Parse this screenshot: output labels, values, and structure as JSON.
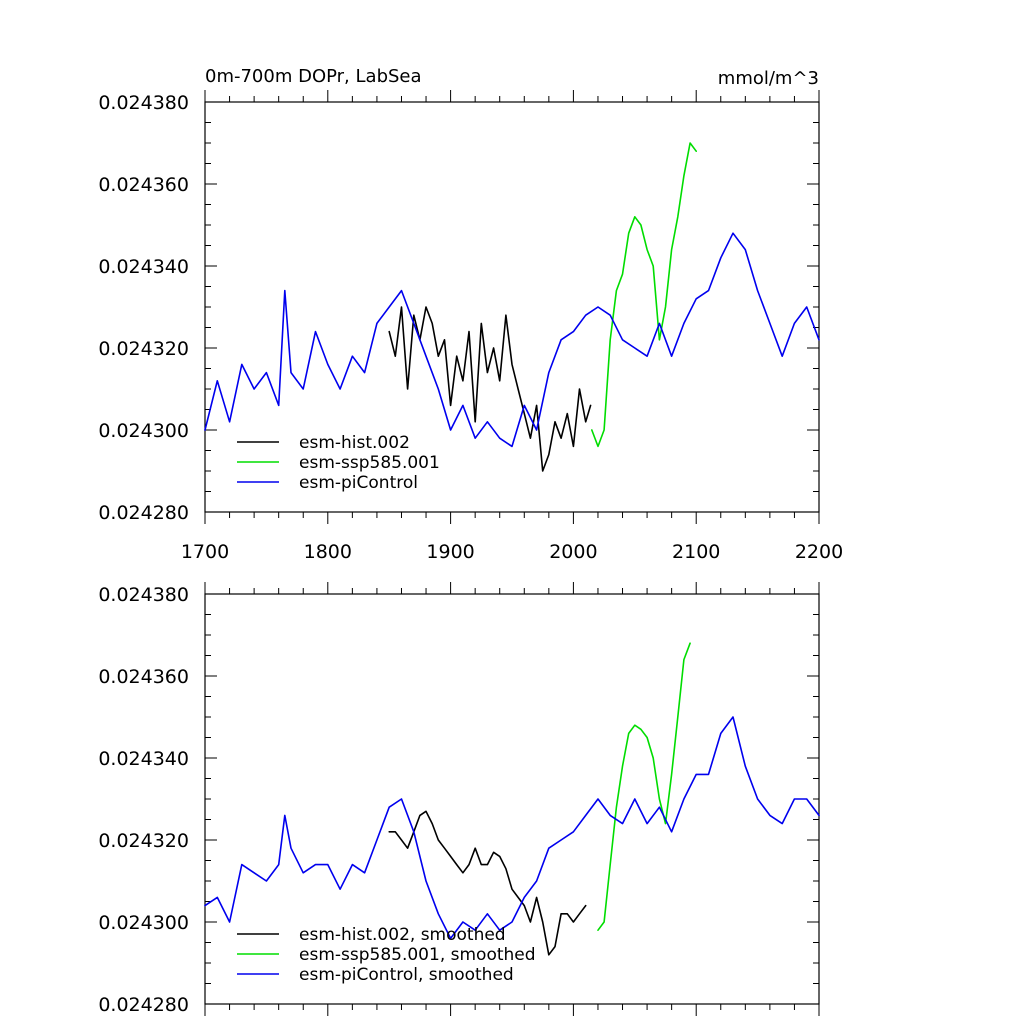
{
  "chart_data": [
    {
      "type": "line",
      "title": "0m-700m DOPr, LabSea",
      "units": "mmol/m^3",
      "xlim": [
        1700,
        2200
      ],
      "ylim": [
        0.02428,
        0.02438
      ],
      "xticks": [
        "1700",
        "1800",
        "1900",
        "2000",
        "2100",
        "2200"
      ],
      "yticks": [
        "0.024280",
        "0.024300",
        "0.024320",
        "0.024340",
        "0.024360",
        "0.024380"
      ],
      "legend": "bottom-left",
      "series": [
        {
          "name": "esm-hist.002",
          "color": "#000000",
          "x": [
            1850,
            1855,
            1860,
            1865,
            1870,
            1875,
            1880,
            1885,
            1890,
            1895,
            1900,
            1905,
            1910,
            1915,
            1920,
            1925,
            1930,
            1935,
            1940,
            1945,
            1950,
            1955,
            1960,
            1965,
            1970,
            1975,
            1980,
            1985,
            1990,
            1995,
            2000,
            2005,
            2010,
            2014
          ],
          "y": [
            0.024324,
            0.024318,
            0.02433,
            0.02431,
            0.024328,
            0.024322,
            0.02433,
            0.024326,
            0.024318,
            0.024322,
            0.024306,
            0.024318,
            0.024312,
            0.024324,
            0.024302,
            0.024326,
            0.024314,
            0.02432,
            0.024312,
            0.024328,
            0.024316,
            0.02431,
            0.024304,
            0.024298,
            0.024306,
            0.02429,
            0.024294,
            0.024302,
            0.024298,
            0.024304,
            0.024296,
            0.02431,
            0.024302,
            0.024306
          ]
        },
        {
          "name": "esm-ssp585.001",
          "color": "#00dd00",
          "x": [
            2015,
            2020,
            2025,
            2030,
            2035,
            2040,
            2045,
            2050,
            2055,
            2060,
            2065,
            2070,
            2075,
            2080,
            2085,
            2090,
            2095,
            2100
          ],
          "y": [
            0.0243,
            0.024296,
            0.0243,
            0.024322,
            0.024334,
            0.024338,
            0.024348,
            0.024352,
            0.02435,
            0.024344,
            0.02434,
            0.024322,
            0.02433,
            0.024344,
            0.024352,
            0.024362,
            0.02437,
            0.024368
          ]
        },
        {
          "name": "esm-piControl",
          "color": "#0000ee",
          "x": [
            1700,
            1710,
            1720,
            1730,
            1740,
            1750,
            1760,
            1765,
            1770,
            1780,
            1790,
            1800,
            1810,
            1820,
            1830,
            1840,
            1850,
            1860,
            1870,
            1880,
            1890,
            1900,
            1910,
            1920,
            1930,
            1940,
            1950,
            1960,
            1970,
            1980,
            1990,
            2000,
            2010,
            2020,
            2030,
            2040,
            2050,
            2060,
            2070,
            2080,
            2090,
            2100,
            2110,
            2120,
            2130,
            2140,
            2150,
            2160,
            2170,
            2180,
            2190,
            2200
          ],
          "y": [
            0.0243,
            0.024312,
            0.024302,
            0.024316,
            0.02431,
            0.024314,
            0.024306,
            0.024334,
            0.024314,
            0.02431,
            0.024324,
            0.024316,
            0.02431,
            0.024318,
            0.024314,
            0.024326,
            0.02433,
            0.024334,
            0.024326,
            0.024318,
            0.02431,
            0.0243,
            0.024306,
            0.024298,
            0.024302,
            0.024298,
            0.024296,
            0.024306,
            0.0243,
            0.024314,
            0.024322,
            0.024324,
            0.024328,
            0.02433,
            0.024328,
            0.024322,
            0.02432,
            0.024318,
            0.024326,
            0.024318,
            0.024326,
            0.024332,
            0.024334,
            0.024342,
            0.024348,
            0.024344,
            0.024334,
            0.024326,
            0.024318,
            0.024326,
            0.02433,
            0.024322
          ]
        }
      ]
    },
    {
      "type": "line",
      "xlim": [
        1700,
        2200
      ],
      "ylim": [
        0.02428,
        0.02438
      ],
      "yticks": [
        "0.024280",
        "0.024300",
        "0.024320",
        "0.024340",
        "0.024360",
        "0.024380"
      ],
      "legend": "bottom-left",
      "series": [
        {
          "name": "esm-hist.002, smoothed",
          "color": "#000000",
          "x": [
            1850,
            1855,
            1860,
            1865,
            1870,
            1875,
            1880,
            1885,
            1890,
            1895,
            1900,
            1905,
            1910,
            1915,
            1920,
            1925,
            1930,
            1935,
            1940,
            1945,
            1950,
            1955,
            1960,
            1965,
            1970,
            1975,
            1980,
            1985,
            1990,
            1995,
            2000,
            2005,
            2010
          ],
          "y": [
            0.024322,
            0.024322,
            0.02432,
            0.024318,
            0.024322,
            0.024326,
            0.024327,
            0.024324,
            0.02432,
            0.024318,
            0.024316,
            0.024314,
            0.024312,
            0.024314,
            0.024318,
            0.024314,
            0.024314,
            0.024317,
            0.024316,
            0.024313,
            0.024308,
            0.024306,
            0.024304,
            0.0243,
            0.024306,
            0.0243,
            0.024292,
            0.024294,
            0.024302,
            0.024302,
            0.0243,
            0.024302,
            0.024304
          ]
        },
        {
          "name": "esm-ssp585.001, smoothed",
          "color": "#00dd00",
          "x": [
            2020,
            2025,
            2030,
            2035,
            2040,
            2045,
            2050,
            2055,
            2060,
            2065,
            2070,
            2075,
            2080,
            2085,
            2090,
            2095
          ],
          "y": [
            0.024298,
            0.0243,
            0.024314,
            0.024328,
            0.024338,
            0.024346,
            0.024348,
            0.024347,
            0.024345,
            0.02434,
            0.02433,
            0.024324,
            0.024336,
            0.02435,
            0.024364,
            0.024368
          ]
        },
        {
          "name": "esm-piControl, smoothed",
          "color": "#0000ee",
          "x": [
            1700,
            1710,
            1720,
            1730,
            1740,
            1750,
            1760,
            1765,
            1770,
            1780,
            1790,
            1800,
            1810,
            1820,
            1830,
            1840,
            1850,
            1860,
            1870,
            1880,
            1890,
            1900,
            1910,
            1920,
            1930,
            1940,
            1950,
            1960,
            1970,
            1980,
            1990,
            2000,
            2010,
            2020,
            2030,
            2040,
            2050,
            2060,
            2070,
            2080,
            2090,
            2100,
            2110,
            2120,
            2130,
            2140,
            2150,
            2160,
            2170,
            2180,
            2190,
            2200
          ],
          "y": [
            0.024304,
            0.024306,
            0.0243,
            0.024314,
            0.024312,
            0.02431,
            0.024314,
            0.024326,
            0.024318,
            0.024312,
            0.024314,
            0.024314,
            0.024308,
            0.024314,
            0.024312,
            0.02432,
            0.024328,
            0.02433,
            0.024322,
            0.02431,
            0.024302,
            0.024296,
            0.0243,
            0.024298,
            0.024302,
            0.024298,
            0.0243,
            0.024306,
            0.02431,
            0.024318,
            0.02432,
            0.024322,
            0.024326,
            0.02433,
            0.024326,
            0.024324,
            0.02433,
            0.024324,
            0.024328,
            0.024322,
            0.02433,
            0.024336,
            0.024336,
            0.024346,
            0.02435,
            0.024338,
            0.02433,
            0.024326,
            0.024324,
            0.02433,
            0.02433,
            0.024326
          ]
        }
      ]
    }
  ]
}
